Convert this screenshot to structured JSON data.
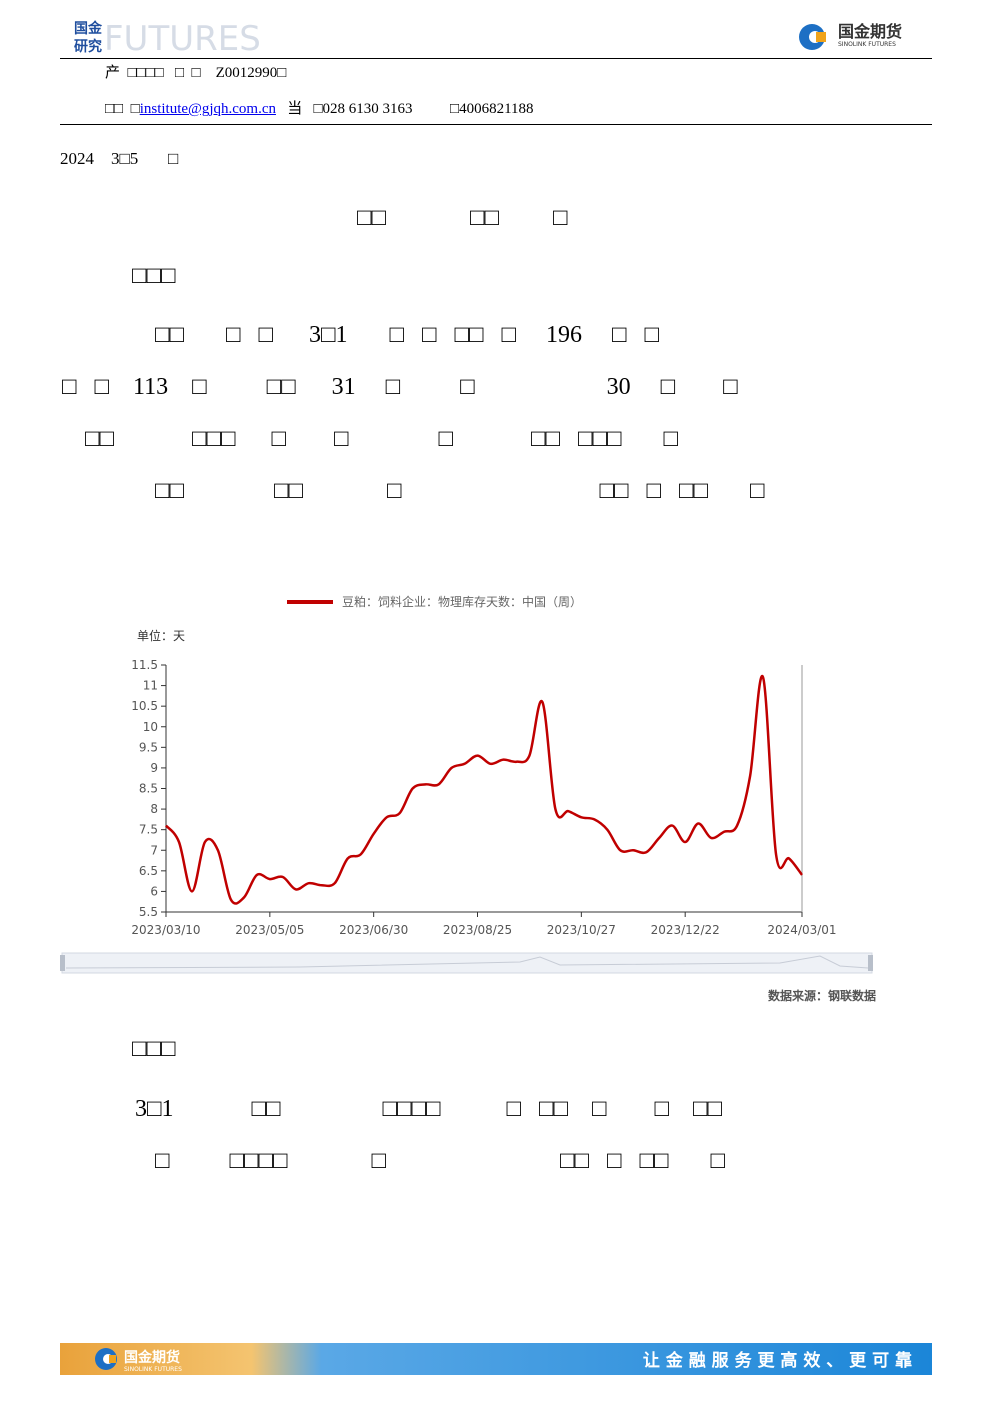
{
  "header": {
    "logo_top": "国金",
    "logo_bottom": "研究",
    "watermark": "FUTURES",
    "brand": "国金期货",
    "brand_en": "SINOLINK FUTURES",
    "contact_line1": "产  □□□□   □  □    Z0012990□",
    "contact_prefix": "□□  □",
    "email": "institute@gjqh.com.cn",
    "contact_suffix": "   当   □028 6130 3163          □4006821188"
  },
  "date": "2024    3□5       □",
  "title": "□□              □□         □",
  "sections": [
    {
      "heading": "□□□",
      "lines": [
        "□□       □   □      3□1       □   □   □□   □     196     □   □",
        "□   □    113    □          □□      31     □          □                      30     □        □",
        "□□             □□□      □        □               □             □□   □□□       □",
        "□□               □□              □                                 □□   □   □□       □"
      ]
    },
    {
      "heading": "□□□",
      "lines": [
        "3□1             □□                 □□□□           □   □□    □        □    □□",
        "□          □□□□              □                             □□   □   □□       □"
      ]
    }
  ],
  "chart_data": {
    "type": "line",
    "legend": "豆粕：饲料企业：物理库存天数：中国（周）",
    "unit": "单位：天",
    "color": "#c00000",
    "categories": [
      "2023/03/10",
      null,
      null,
      null,
      null,
      null,
      null,
      null,
      "2023/05/05",
      null,
      null,
      null,
      null,
      null,
      null,
      null,
      "2023/06/30",
      null,
      null,
      null,
      null,
      null,
      null,
      null,
      "2023/08/25",
      null,
      null,
      null,
      null,
      null,
      null,
      null,
      "2023/10/27",
      null,
      null,
      null,
      null,
      null,
      null,
      null,
      "2023/12/22",
      null,
      null,
      null,
      null,
      null,
      null,
      null,
      null,
      "2024/03/01"
    ],
    "values": [
      7.6,
      7.2,
      6.0,
      7.2,
      7.0,
      5.8,
      5.85,
      6.4,
      6.3,
      6.35,
      6.05,
      6.2,
      6.15,
      6.2,
      6.8,
      6.9,
      7.4,
      7.8,
      7.9,
      8.5,
      8.6,
      8.6,
      9.0,
      9.1,
      9.3,
      9.1,
      9.2,
      9.15,
      9.3,
      10.6,
      8.0,
      7.95,
      7.8,
      7.75,
      7.5,
      7.0,
      7.0,
      6.95,
      7.3,
      7.6,
      7.2,
      7.65,
      7.3,
      7.45,
      7.6,
      8.8,
      11.2,
      6.9,
      6.8,
      6.4
    ],
    "ylim": [
      5.5,
      11.5
    ],
    "yticks": [
      5.5,
      6,
      6.5,
      7,
      7.5,
      8,
      8.5,
      9,
      9.5,
      10,
      10.5,
      11,
      11.5
    ]
  },
  "source": "数据来源：钢联数据",
  "footer": {
    "brand": "国金期货",
    "brand_en": "SINOLINK FUTURES",
    "slogan": "让 金 融 服 务 更 高 效 、 更 可 靠"
  }
}
